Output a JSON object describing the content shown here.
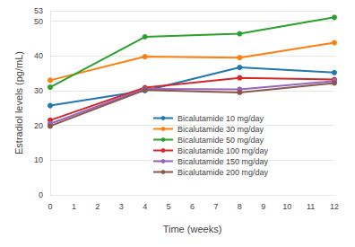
{
  "chart_data": {
    "type": "line",
    "x_label": "Time (weeks)",
    "y_label": "Estradiol levels (pg/mL)",
    "x": [
      0,
      4,
      8,
      12
    ],
    "series": [
      {
        "name": "Bicalutamide 10 mg/day",
        "color": "#1f77b4",
        "values": [
          25.7,
          30.0,
          36.7,
          35.2
        ]
      },
      {
        "name": "Bicalutamide 30 mg/day",
        "color": "#ff7f0e",
        "values": [
          33.0,
          39.8,
          39.5,
          43.8
        ]
      },
      {
        "name": "Bicalutamide 50 mg/day",
        "color": "#2ca02c",
        "values": [
          31.0,
          45.5,
          46.4,
          51.1
        ]
      },
      {
        "name": "Bicalutamide 100 mg/day",
        "color": "#d62728",
        "values": [
          21.5,
          30.9,
          33.7,
          33.2
        ]
      },
      {
        "name": "Bicalutamide 150 mg/day",
        "color": "#9467bd",
        "values": [
          20.5,
          30.5,
          30.4,
          32.8
        ]
      },
      {
        "name": "Bicalutamide 200 mg/day",
        "color": "#8c564b",
        "values": [
          19.8,
          30.2,
          29.5,
          32.2
        ]
      }
    ],
    "xlim": [
      0,
      12
    ],
    "xticks": [
      0,
      1,
      2,
      3,
      4,
      5,
      6,
      7,
      8,
      9,
      10,
      11,
      12
    ],
    "ylim": [
      0,
      53
    ],
    "yticks": [
      0,
      10,
      20,
      30,
      40,
      50
    ],
    "grid": true,
    "legend": "bottom",
    "marker": "circle"
  }
}
